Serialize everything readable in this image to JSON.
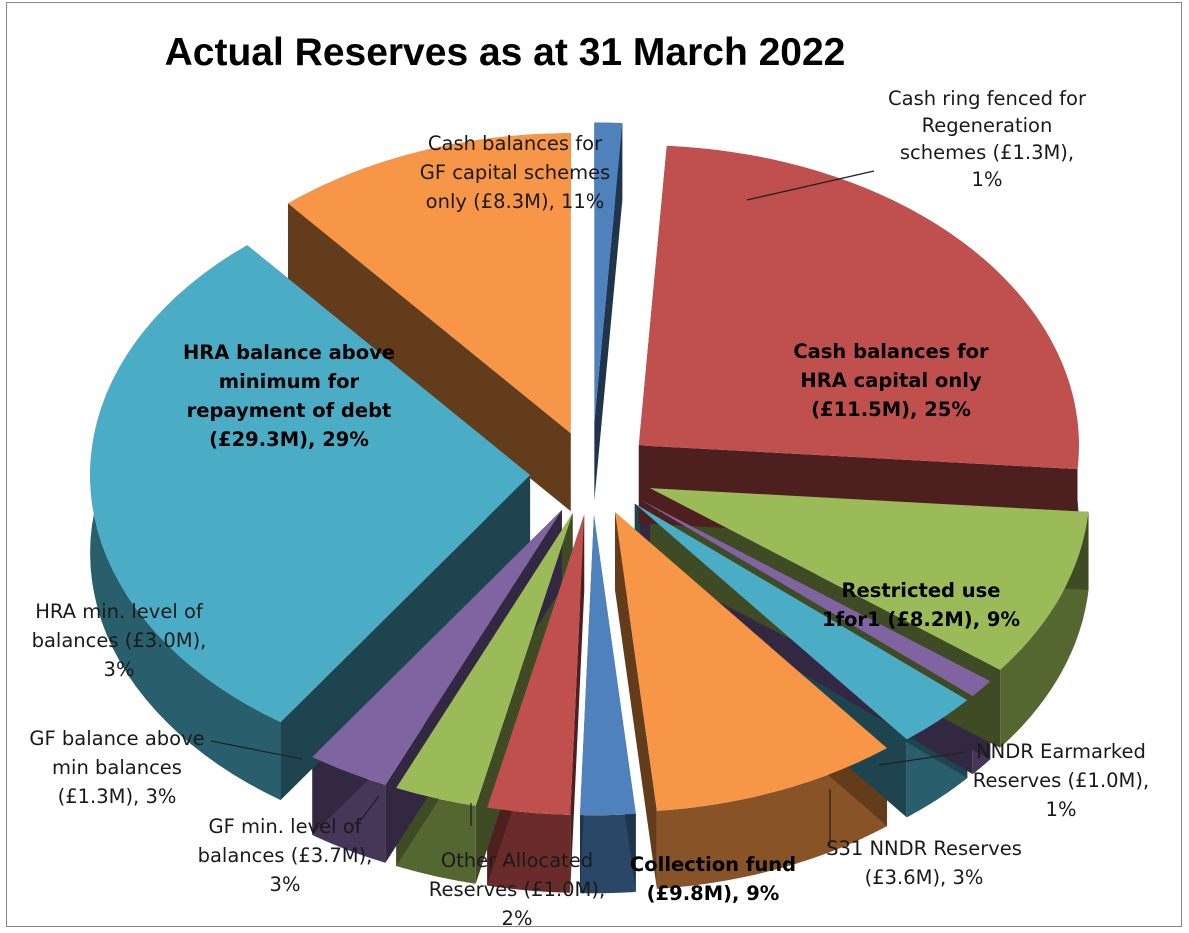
{
  "chart_data": {
    "type": "pie",
    "style": "3d exploded",
    "title": "Actual Reserves as at 31 March 2022",
    "legend": "none",
    "slices": [
      {
        "label_lines": [
          "Cash ring fenced for",
          "Regeneration",
          "schemes  (£1.3M),",
          "1%"
        ],
        "value_m": 1.3,
        "percent": 1,
        "color": "#4f81bd",
        "label_bold": false
      },
      {
        "label_lines": [
          "Cash balances for",
          "HRA capital only",
          "(£11.5M), 25%"
        ],
        "value_m": 11.5,
        "percent": 25,
        "color": "#c0504d",
        "label_bold": true
      },
      {
        "label_lines": [
          "Restricted use",
          "1for1 (£8.2M), 9%"
        ],
        "value_m": 8.2,
        "percent": 9,
        "color": "#9bbb59",
        "label_bold": true
      },
      {
        "label_lines": [
          "NNDR Earmarked",
          "Reserves (£1.0M),",
          "1%"
        ],
        "value_m": 1.0,
        "percent": 1,
        "color": "#8064a2",
        "label_bold": false
      },
      {
        "label_lines": [
          "S31 NNDR Reserves",
          "(£3.6M), 3%"
        ],
        "value_m": 3.6,
        "percent": 3,
        "color": "#4bacc6",
        "label_bold": false
      },
      {
        "label_lines": [
          "Collection fund",
          "(£9.8M), 9%"
        ],
        "value_m": 9.8,
        "percent": 9,
        "color": "#f79646",
        "label_bold": true
      },
      {
        "label_lines": [
          "Other Allocated",
          "Reserves (£1.0M),",
          "2%"
        ],
        "value_m": 1.0,
        "percent": 2,
        "color": "#4f81bd",
        "label_bold": false
      },
      {
        "label_lines": [
          "GF min. level of",
          "balances (£3.7M),",
          "3%"
        ],
        "value_m": 3.7,
        "percent": 3,
        "color": "#c0504d",
        "label_bold": false
      },
      {
        "label_lines": [
          "GF balance above",
          "min balances",
          "(£1.3M), 3%"
        ],
        "value_m": 1.3,
        "percent": 3,
        "color": "#9bbb59",
        "label_bold": false
      },
      {
        "label_lines": [
          "HRA min. level of",
          "balances (£3.0M),",
          "3%"
        ],
        "value_m": 3.0,
        "percent": 3,
        "color": "#8064a2",
        "label_bold": false
      },
      {
        "label_lines": [
          "HRA balance above",
          "minimum for",
          "repayment of debt",
          "(£29.3M), 29%"
        ],
        "value_m": 29.3,
        "percent": 29,
        "color": "#4bacc6",
        "label_bold": true
      },
      {
        "label_lines": [
          "Cash balances for",
          "GF capital schemes",
          "only  (£8.3M), 11%"
        ],
        "value_m": 8.3,
        "percent": 11,
        "color": "#f79646",
        "label_bold": false
      }
    ]
  }
}
